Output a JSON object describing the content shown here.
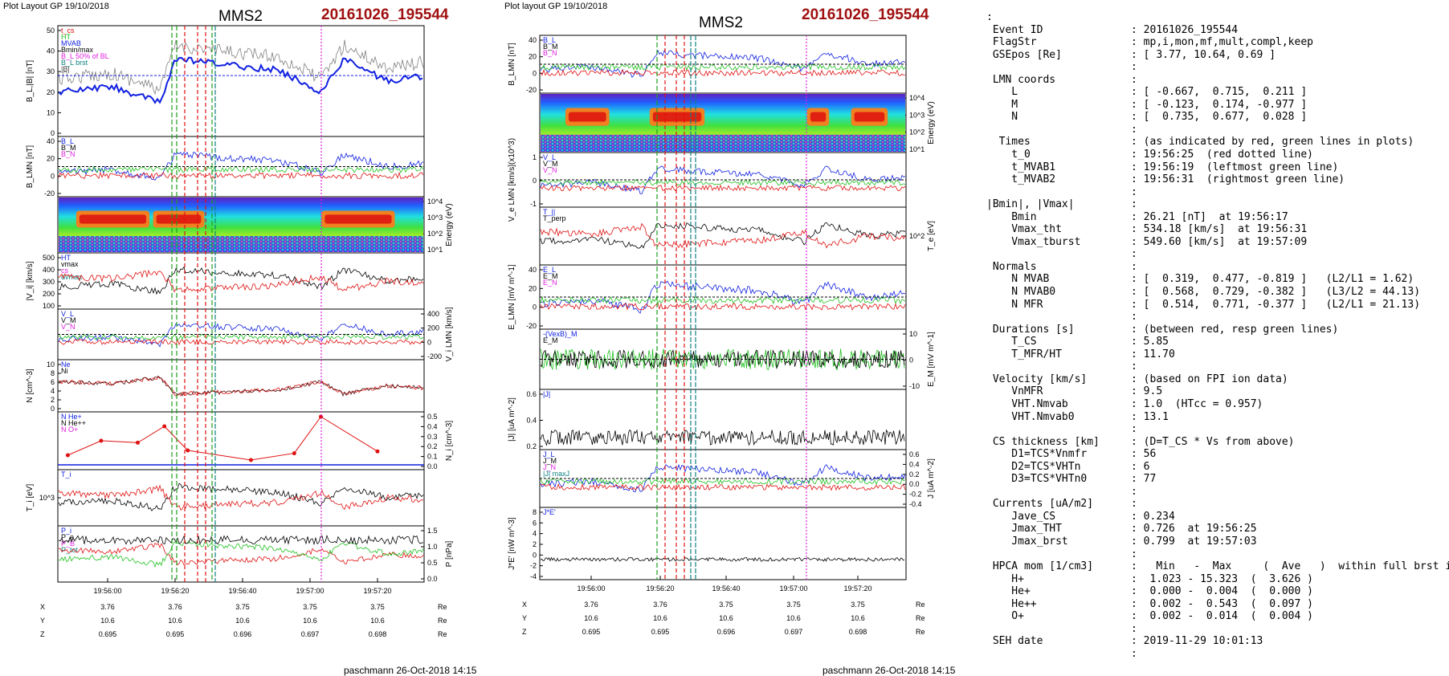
{
  "left_plot": {
    "header": "Plot Layout GP 19/10/2018",
    "spacecraft": "MMS2",
    "event": "20161026_195544",
    "footer": "paschmann 26-Oct-2018 14:15",
    "time_ticks": [
      "19:56:00",
      "19:56:20",
      "19:56:40",
      "19:57:00",
      "19:57:20"
    ],
    "pos_rows": [
      {
        "label": "X",
        "values": [
          "3.76",
          "3.76",
          "3.75",
          "3.75",
          "3.75"
        ],
        "unit": "Re"
      },
      {
        "label": "Y",
        "values": [
          "10.6",
          "10.6",
          "10.6",
          "10.6",
          "10.6"
        ],
        "unit": "Re"
      },
      {
        "label": "Z",
        "values": [
          "0.695",
          "0.695",
          "0.696",
          "0.697",
          "0.698"
        ],
        "unit": "Re"
      }
    ],
    "panels": [
      {
        "id": "B",
        "ylabel": "B_L,|B| [nT]",
        "yticks": [
          "50",
          "40",
          "30",
          "20",
          "10",
          "0"
        ],
        "legend": [
          "t_cs",
          "HT",
          "MVAB",
          "Bmin/max",
          "B_L 50% of BL",
          "B_L brst",
          "|B|"
        ]
      },
      {
        "id": "BLMN",
        "ylabel": "B_LMN [nT]",
        "yticks": [
          "40",
          "20",
          "0",
          "-20"
        ],
        "legend": [
          "B_L",
          "B_M",
          "B_N"
        ]
      },
      {
        "id": "spec",
        "ylabel": "Energy (eV)",
        "yticks": [
          "10^4",
          "10^3",
          "10^2",
          "10^1"
        ]
      },
      {
        "id": "Vi",
        "ylabel": "|V_i| [km/s]",
        "yticks": [
          "500",
          "400",
          "300",
          "200",
          "100"
        ],
        "legend": [
          "HT",
          "vmax",
          "cs",
          "dvmax"
        ]
      },
      {
        "id": "ViLMN",
        "ylabel": "V_i LMN [km/s]",
        "yticks": [
          "400",
          "200",
          "0",
          "-200"
        ],
        "legend": [
          "V_L",
          "V_M",
          "V_N"
        ]
      },
      {
        "id": "N",
        "ylabel": "N [cm^-3]",
        "yticks": [
          "10",
          "8",
          "6",
          "4",
          "2",
          "0"
        ],
        "legend": [
          "Ne",
          "Ni"
        ]
      },
      {
        "id": "Ni",
        "ylabel": "N_i [cm^-3]",
        "yticks": [
          "0.5",
          "0.4",
          "0.3",
          "0.2",
          "0.1",
          "0.0"
        ],
        "legend": [
          "N He+",
          "N He++",
          "N O+"
        ]
      },
      {
        "id": "Ti",
        "ylabel": "T_i [eV]",
        "yticks": [
          "10^3"
        ],
        "legend": [
          "T_i"
        ]
      },
      {
        "id": "P",
        "ylabel": "P [nPa]",
        "yticks": [
          "1.5",
          "1.0",
          "0.5",
          "0.0"
        ],
        "legend": [
          "P_i",
          "P_e",
          "P_B",
          "P_tot"
        ]
      }
    ]
  },
  "middle_plot": {
    "header": "Plot layout GP 19/10/2018",
    "spacecraft": "MMS2",
    "event": "20161026_195544",
    "footer": "paschmann 26-Oct-2018 14:15",
    "time_ticks": [
      "19:56:00",
      "19:56:20",
      "19:56:40",
      "19:57:00",
      "19:57:20"
    ],
    "pos_rows": [
      {
        "label": "X",
        "values": [
          "3.76",
          "3.76",
          "3.75",
          "3.75",
          "3.75"
        ],
        "unit": "Re"
      },
      {
        "label": "Y",
        "values": [
          "10.6",
          "10.6",
          "10.6",
          "10.6",
          "10.6"
        ],
        "unit": "Re"
      },
      {
        "label": "Z",
        "values": [
          "0.695",
          "0.695",
          "0.696",
          "0.697",
          "0.698"
        ],
        "unit": "Re"
      }
    ],
    "panels": [
      {
        "id": "BLMN",
        "ylabel": "B_LMN [nT]",
        "yticks": [
          "40",
          "20",
          "0",
          "-20"
        ],
        "legend": [
          "B_L",
          "B_M",
          "B_N"
        ]
      },
      {
        "id": "espec",
        "ylabel": "Energy (eV)",
        "yticks": [
          "10^4",
          "10^3",
          "10^2",
          "10^1"
        ]
      },
      {
        "id": "Ve",
        "ylabel": "V_e LMN [km/s](x10^3)",
        "yticks": [
          "1",
          "0",
          "-1"
        ],
        "legend": [
          "V_L",
          "V_M",
          "V_N"
        ]
      },
      {
        "id": "Te",
        "ylabel": "T_e [eV]",
        "yticks": [
          "10^2"
        ],
        "legend": [
          "T_||",
          "T_perp"
        ]
      },
      {
        "id": "E",
        "ylabel": "E_LMN [mV m^-1]",
        "yticks": [
          "40",
          "20",
          "0",
          "-20"
        ],
        "legend": [
          "E_L",
          "E_M",
          "E_N"
        ]
      },
      {
        "id": "EM",
        "ylabel": "E_M [mV m^-1]",
        "yticks": [
          "10",
          "0",
          "-10"
        ],
        "legend": [
          "-(VexB)_M",
          "E_M"
        ]
      },
      {
        "id": "J",
        "ylabel": "|J| [uA m^-2]",
        "yticks": [
          "0.6",
          "0.4",
          "0.2"
        ],
        "legend": [
          "|J|"
        ]
      },
      {
        "id": "JLMN",
        "ylabel": "J [uA m^-2]",
        "yticks": [
          "0.6",
          "0.4",
          "0.2",
          "0.0",
          "-0.2",
          "-0.4"
        ],
        "legend": [
          "J_L",
          "J_M",
          "J_N",
          "|J| maxJ"
        ]
      },
      {
        "id": "JE",
        "ylabel": "J*E' [nW m^-3]",
        "yticks": [
          "8",
          "6",
          "4",
          "2",
          "0",
          "-2",
          "-4"
        ],
        "legend": [
          "J*E'"
        ]
      }
    ]
  },
  "info": {
    "lines": [
      ":",
      " Event ID              : 20161026_195544",
      " FlagStr               : mp,i,mon,mf,mult,compl,keep",
      " GSEpos [Re]           : [ 3.77, 10.64, 0.69 ]",
      "                       :",
      " LMN coords            :",
      "    L                  : [ -0.667,  0.715,  0.211 ]",
      "    M                  : [ -0.123,  0.174, -0.977 ]",
      "    N                  : [  0.735,  0.677,  0.028 ]",
      "                       :",
      "  Times                : (as indicated by red, green lines in plots)",
      "    t_0                : 19:56:25  (red dotted line)",
      "    t_MVAB1            : 19:56:19  (leftmost green line)",
      "    t_MVAB2            : 19:56:31  (rightmost green line)",
      "                       :",
      "|Bmin|, |Vmax|         :",
      "    Bmin               : 26.21 [nT]  at 19:56:17",
      "    Vmax_tht           : 534.18 [km/s]  at 19:56:31",
      "    Vmax_tburst        : 549.60 [km/s]  at 19:57:09",
      "                       :",
      " Normals               :",
      "    N MVAB             : [  0.319,  0.477, -0.819 ]   (L2/L1 = 1.62)",
      "    N MVAB0            : [  0.568,  0.729, -0.382 ]   (L3/L2 = 44.13)",
      "    N MFR              : [  0.514,  0.771, -0.377 ]   (L2/L1 = 21.13)",
      "                       :",
      " Durations [s]         : (between red, resp green lines)",
      "    T_CS               : 5.85",
      "    T_MFR/HT           : 11.70",
      "                       :",
      " Velocity [km/s]       : (based on FPI ion data)",
      "    VnMFR              : 9.5",
      "    VHT.Nmvab          : 1.0  (HTcc = 0.957)",
      "    VHT.Nmvab0         : 13.1",
      "                       :",
      " CS thickness [km]     : (D=T_CS * Vs from above)",
      "    D1=TCS*Vnmfr       : 56",
      "    D2=TCS*VHTn        : 6",
      "    D3=TCS*VHTn0       : 77",
      "                       :",
      " Currents [uA/m2]      :",
      "    Jave_CS            : 0.234",
      "    Jmax_THT           : 0.726  at 19:56:25",
      "    Jmax_brst          : 0.799  at 19:57:03",
      "                       :",
      " HPCA mom [1/cm3]      :   Min   -  Max     (  Ave   )  within full brst int",
      "    H+                 :  1.023 - 15.323  (  3.626 )",
      "    He+                :  0.000 -  0.004  (  0.000 )",
      "    He++               :  0.002 -  0.543  (  0.097 )",
      "    O+                 :  0.002 -  0.014  (  0.004 )",
      "                       :",
      " SEH date              : 2019-11-29 10:01:13",
      "                       :"
    ]
  },
  "chart_data": {
    "type": "line",
    "note_series": "multi-panel time series, time axis 19:55:44 to 19:57:34",
    "x_range": [
      "19:55:44",
      "19:57:34"
    ],
    "markers": {
      "green_dashed": [
        "19:56:19",
        "19:56:31"
      ],
      "red_dashed": [
        "19:56:22",
        "19:56:25",
        "19:56:28"
      ],
      "magenta_dotted": [
        "19:57:02"
      ]
    },
    "Ni_He_pp": {
      "x": [
        "19:55:47",
        "19:55:57",
        "19:56:08",
        "19:56:16",
        "19:56:23",
        "19:56:42",
        "19:56:55",
        "19:57:03",
        "19:57:20"
      ],
      "y": [
        0.1,
        0.25,
        0.23,
        0.4,
        0.15,
        0.05,
        0.12,
        0.5,
        0.14
      ]
    },
    "colors": {
      "red": "#e01010",
      "green": "#20c020",
      "blue": "#1020e0",
      "black": "#000000",
      "magenta": "#e020e0",
      "teal": "#108080"
    }
  }
}
